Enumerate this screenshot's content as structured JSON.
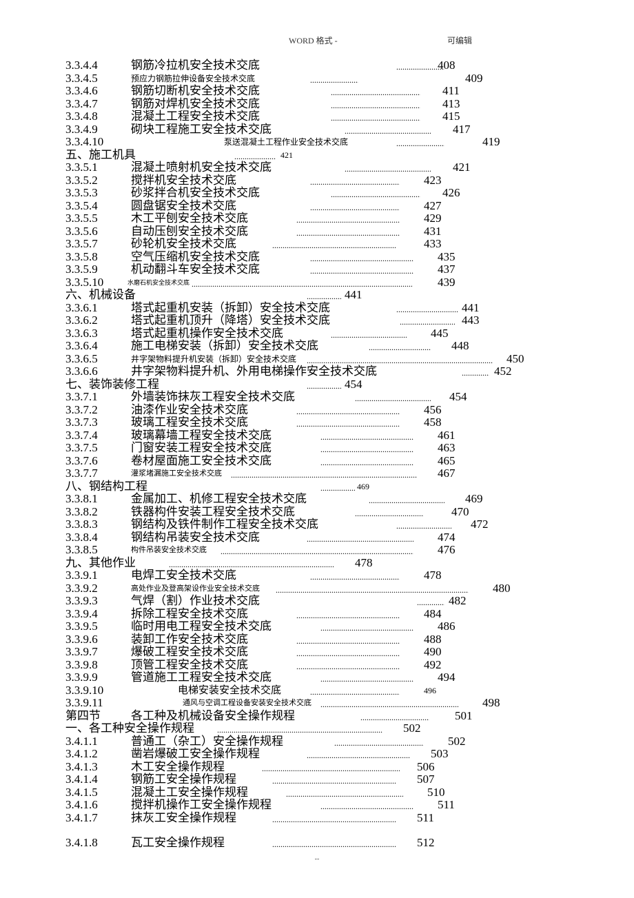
{
  "header": {
    "left": "WORD 格式 -",
    "right": "可编辑"
  },
  "lines": [
    {
      "num": "3.3.4.4",
      "title": "钢筋冷拉机安全技术交底",
      "dots_l": 480,
      "dots_w": 70,
      "page": "408",
      "page_l": 540,
      "title_l": 95
    },
    {
      "num": "3.3.4.5",
      "title": "预应力钢筋拉伸设备安全技术交底",
      "dots_l": 355,
      "dots_w": 70,
      "page": "409",
      "page_l": 580,
      "title_l": 95,
      "small": true,
      "title_size": 12
    },
    {
      "num": "3.3.4.6",
      "title": "钢筋切断机安全技术交底",
      "dots_l": 385,
      "dots_w": 130,
      "page": "411",
      "page_l": 547,
      "title_l": 95
    },
    {
      "num": "3.3.4.7",
      "title": "钢筋对焊机安全技术交底",
      "dots_l": 385,
      "dots_w": 130,
      "page": "413",
      "page_l": 547,
      "title_l": 95
    },
    {
      "num": "3.3.4.8",
      "title": "混凝土工程安全技术交底",
      "dots_l": 385,
      "dots_w": 130,
      "page": "415",
      "page_l": 547,
      "title_l": 95
    },
    {
      "num": "3.3.4.9",
      "title": "砌块工程施工安全技术交底",
      "dots_l": 405,
      "dots_w": 125,
      "page": "417",
      "page_l": 562,
      "title_l": 95
    },
    {
      "num": "3.3.4.10",
      "title": "泵送混凝土工程作业安全技术交底",
      "dots_l": 480,
      "dots_w": 70,
      "page": "419",
      "page_l": 605,
      "title_l": 230,
      "small": true,
      "title_size": 12
    },
    {
      "num": "五、施工机具",
      "title": "",
      "dots_l": 245,
      "dots_w": 60,
      "page": "421",
      "page_l": 312,
      "title_l": 0,
      "num_wide": true,
      "page_size": 12
    },
    {
      "num": "3.3.5.1",
      "title": "混凝土喷射机安全技术交底",
      "dots_l": 405,
      "dots_w": 125,
      "page": "421",
      "page_l": 562,
      "title_l": 95
    },
    {
      "num": "3.3.5.2",
      "title": "搅拌机安全技术交底",
      "dots_l": 355,
      "dots_w": 130,
      "page": "423",
      "page_l": 520,
      "title_l": 95
    },
    {
      "num": "3.3.5.3",
      "title": "砂浆拌合机安全技术交底",
      "dots_l": 385,
      "dots_w": 130,
      "page": "426",
      "page_l": 547,
      "title_l": 95
    },
    {
      "num": "3.3.5.4",
      "title": "圆盘锯安全技术交底",
      "dots_l": 355,
      "dots_w": 130,
      "page": "427",
      "page_l": 520,
      "title_l": 95
    },
    {
      "num": "3.3.5.5",
      "title": "木工平刨安全技术交底",
      "dots_l": 335,
      "dots_w": 150,
      "page": "429",
      "page_l": 520,
      "title_l": 95
    },
    {
      "num": "3.3.5.6",
      "title": "自动压刨安全技术交底",
      "dots_l": 335,
      "dots_w": 150,
      "page": "431",
      "page_l": 520,
      "title_l": 95
    },
    {
      "num": "3.3.5.7",
      "title": "砂轮机安全技术交底",
      "dots_l": 300,
      "dots_w": 180,
      "page": "433",
      "page_l": 520,
      "title_l": 95
    },
    {
      "num": "3.3.5.8",
      "title": "空气压缩机安全技术交底",
      "dots_l": 355,
      "dots_w": 150,
      "page": "435",
      "page_l": 540,
      "title_l": 95
    },
    {
      "num": "3.3.5.9",
      "title": "机动翻斗车安全技术交底",
      "dots_l": 355,
      "dots_w": 150,
      "page": "437",
      "page_l": 540,
      "title_l": 95
    },
    {
      "num": "3.3.5.10",
      "title": "水磨石机安全技术交底",
      "dots_l": 183,
      "dots_w": 320,
      "page": "439",
      "page_l": 540,
      "title_l": 90,
      "small": true,
      "title_size": 9
    },
    {
      "num": "六、机械设备",
      "title": "",
      "dots_l": 350,
      "dots_w": 50,
      "page": "441",
      "page_l": 405,
      "title_l": 0,
      "num_wide": true
    },
    {
      "num": "3.3.6.1",
      "title": "塔式起重机安装（拆卸）安全技术交底",
      "dots_l": 480,
      "dots_w": 90,
      "page": "441",
      "page_l": 575,
      "title_l": 95
    },
    {
      "num": "3.3.6.2",
      "title": "塔式起重机顶升（降塔）安全技术交底",
      "dots_l": 485,
      "dots_w": 80,
      "page": "443",
      "page_l": 575,
      "title_l": 95
    },
    {
      "num": "3.3.6.3",
      "title": "塔式起重机操作安全技术交底",
      "dots_l": 385,
      "dots_w": 110,
      "page": "445",
      "page_l": 530,
      "title_l": 95
    },
    {
      "num": "3.3.6.4",
      "title": "施工电梯安装（拆卸）安全技术交底",
      "dots_l": 440,
      "dots_w": 90,
      "page": "448",
      "page_l": 560,
      "title_l": 95
    },
    {
      "num": "3.3.6.5",
      "title": "井字架物料提升机安装（拆卸）安全技术交底",
      "dots_l": 350,
      "dots_w": 270,
      "page": "450",
      "page_l": 640,
      "title_l": 95,
      "small": true,
      "title_size": 12
    },
    {
      "num": "3.3.6.6",
      "title": "井字架物料提升机、外用电梯操作安全技术交底",
      "dots_l": 575,
      "dots_w": 40,
      "page": "452",
      "page_l": 622,
      "title_l": 95
    },
    {
      "num": "七、装饰装修工程",
      "title": "",
      "dots_l": 350,
      "dots_w": 50,
      "page": "454",
      "page_l": 405,
      "title_l": 0,
      "num_wide": true
    },
    {
      "num": "3.3.7.1",
      "title": "外墙装饰抹灰工程安全技术交底",
      "dots_l": 420,
      "dots_w": 110,
      "page": "454",
      "page_l": 557,
      "title_l": 95
    },
    {
      "num": "3.3.7.2",
      "title": "油漆作业安全技术交底",
      "dots_l": 335,
      "dots_w": 150,
      "page": "456",
      "page_l": 520,
      "title_l": 95
    },
    {
      "num": "3.3.7.3",
      "title": "玻璃工程安全技术交底",
      "dots_l": 335,
      "dots_w": 150,
      "page": "458",
      "page_l": 520,
      "title_l": 95
    },
    {
      "num": "3.3.7.4",
      "title": "玻璃幕墙工程安全技术交底",
      "dots_l": 370,
      "dots_w": 135,
      "page": "461",
      "page_l": 540,
      "title_l": 95
    },
    {
      "num": "3.3.7.5",
      "title": "门窗安装工程安全技术交底",
      "dots_l": 370,
      "dots_w": 135,
      "page": "463",
      "page_l": 540,
      "title_l": 95
    },
    {
      "num": "3.3.7.6",
      "title": "卷材屋面施工安全技术交底",
      "dots_l": 370,
      "dots_w": 135,
      "page": "465",
      "page_l": 540,
      "title_l": 95
    },
    {
      "num": "3.3.7.7",
      "title": "灌浆堵漏施工安全技术交底",
      "dots_l": 240,
      "dots_w": 270,
      "page": "467",
      "page_l": 540,
      "title_l": 95,
      "small": true,
      "title_size": 11
    },
    {
      "num": "八、钢结构工程",
      "title": "",
      "dots_l": 370,
      "dots_w": 50,
      "page": "469",
      "page_l": 423,
      "title_l": 0,
      "num_wide": true,
      "page_size": 12
    },
    {
      "num": "3.3.8.1",
      "title": "金属加工、机修工程安全技术交底",
      "dots_l": 440,
      "dots_w": 110,
      "page": "469",
      "page_l": 580,
      "title_l": 95
    },
    {
      "num": "3.3.8.2",
      "title": "铁器构件安装工程安全技术交底",
      "dots_l": 420,
      "dots_w": 100,
      "page": "470",
      "page_l": 560,
      "title_l": 95
    },
    {
      "num": "3.3.8.3",
      "title": "钢结构及铁件制作工程安全技术交底",
      "dots_l": 480,
      "dots_w": 80,
      "page": "472",
      "page_l": 588,
      "title_l": 95
    },
    {
      "num": "3.3.8.4",
      "title": "钢结构吊装安全技术交底",
      "dots_l": 350,
      "dots_w": 155,
      "page": "474",
      "page_l": 540,
      "title_l": 95
    },
    {
      "num": "3.3.8.5",
      "title": "构件吊装安全技术交底",
      "dots_l": 225,
      "dots_w": 280,
      "page": "476",
      "page_l": 540,
      "title_l": 95,
      "small": true,
      "title_size": 11
    },
    {
      "num": "九、其他作业",
      "title": "",
      "dots_l": 150,
      "dots_w": 240,
      "page": "478",
      "page_l": 420,
      "title_l": 0,
      "num_wide": true
    },
    {
      "num": "3.3.9.1",
      "title": "电焊工安全技术交底",
      "dots_l": 355,
      "dots_w": 130,
      "page": "478",
      "page_l": 520,
      "title_l": 95
    },
    {
      "num": "3.3.9.2",
      "title": "高处作业及登高架设作业安全技术交底",
      "dots_l": 305,
      "dots_w": 280,
      "page": "480",
      "page_l": 620,
      "title_l": 95,
      "small": true,
      "title_size": 11
    },
    {
      "num": "3.3.9.3",
      "title": "气焊（割）作业技术交底",
      "dots_l": 510,
      "dots_w": 40,
      "page": "482",
      "page_l": 556,
      "title_l": 95
    },
    {
      "num": "3.3.9.4",
      "title": "拆除工程安全技术交底",
      "dots_l": 335,
      "dots_w": 150,
      "page": "484",
      "page_l": 520,
      "title_l": 95
    },
    {
      "num": "3.3.9.5",
      "title": "临时用电工程安全技术交底",
      "dots_l": 370,
      "dots_w": 135,
      "page": "486",
      "page_l": 540,
      "title_l": 95
    },
    {
      "num": "3.3.9.6",
      "title": "装卸工作安全技术交底",
      "dots_l": 335,
      "dots_w": 150,
      "page": "488",
      "page_l": 520,
      "title_l": 95
    },
    {
      "num": "3.3.9.7",
      "title": "爆破工程安全技术交底",
      "dots_l": 335,
      "dots_w": 150,
      "page": "490",
      "page_l": 520,
      "title_l": 95
    },
    {
      "num": "3.3.9.8",
      "title": "顶管工程安全技术交底",
      "dots_l": 335,
      "dots_w": 150,
      "page": "492",
      "page_l": 520,
      "title_l": 95
    },
    {
      "num": "3.3.9.9",
      "title": "管道施工工程安全技术交底",
      "dots_l": 370,
      "dots_w": 135,
      "page": "494",
      "page_l": 540,
      "title_l": 95
    },
    {
      "num": "3.3.9.10",
      "title": "电梯安装安全技术交底",
      "dots_l": 355,
      "dots_w": 130,
      "page": "496",
      "page_l": 520,
      "title_l": 163,
      "page_size": 12,
      "title_size": 15
    },
    {
      "num": "3.3.9.11",
      "title": "通风与空调工程设备安装安全技术交底",
      "dots_l": 370,
      "dots_w": 200,
      "page": "498",
      "page_l": 605,
      "title_l": 170,
      "small": true,
      "title_size": 11
    },
    {
      "num": "第四节",
      "title": "各工种及机械设备安全操作规程",
      "dots_l": 428,
      "dots_w": 100,
      "page": "501",
      "page_l": 565,
      "title_l": 95
    },
    {
      "num": "一、各工种安全操作规程",
      "title": "",
      "dots_l": 220,
      "dots_w": 240,
      "page": "502",
      "page_l": 490,
      "title_l": 0,
      "num_wide": true
    },
    {
      "num": "3.4.1.1",
      "title": "普通工（杂工）安全操作规程",
      "dots_l": 390,
      "dots_w": 130,
      "page": "502",
      "page_l": 555,
      "title_l": 95
    },
    {
      "num": "3.4.1.2",
      "title": "凿岩爆破工安全操作规程",
      "dots_l": 350,
      "dots_w": 150,
      "page": "503",
      "page_l": 530,
      "title_l": 95
    },
    {
      "num": "3.4.1.3",
      "title": "木工安全操作规程",
      "dots_l": 285,
      "dots_w": 200,
      "page": "506",
      "page_l": 510,
      "title_l": 95
    },
    {
      "num": "3.4.1.4",
      "title": "钢筋工安全操作规程",
      "dots_l": 300,
      "dots_w": 180,
      "page": "507",
      "page_l": 510,
      "title_l": 95
    },
    {
      "num": "3.4.1.5",
      "title": "混凝土工安全操作规程",
      "dots_l": 320,
      "dots_w": 170,
      "page": "510",
      "page_l": 525,
      "title_l": 95
    },
    {
      "num": "3.4.1.6",
      "title": "搅拌机操作工安全操作规程",
      "dots_l": 370,
      "dots_w": 135,
      "page": "511",
      "page_l": 540,
      "title_l": 95
    },
    {
      "num": "3.4.1.7",
      "title": "抹灰工安全操作规程",
      "dots_l": 300,
      "dots_w": 180,
      "page": "511",
      "page_l": 510,
      "title_l": 95
    },
    {
      "spacer": true
    },
    {
      "num": "3.4.1.8",
      "title": "瓦工安全操作规程",
      "dots_l": 300,
      "dots_w": 180,
      "page": "512",
      "page_l": 510,
      "title_l": 95
    }
  ]
}
